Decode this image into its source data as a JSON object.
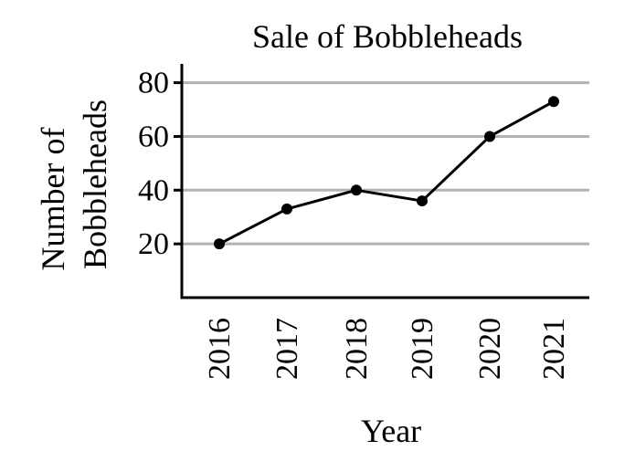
{
  "chart_data": {
    "type": "line",
    "title": "Sale of Bobbleheads",
    "xlabel": "Year",
    "ylabel_lines": [
      "Number of",
      "Bobbleheads"
    ],
    "categories": [
      "2016",
      "2017",
      "2018",
      "2019",
      "2020",
      "2021"
    ],
    "values": [
      20,
      33,
      40,
      36,
      60,
      73
    ],
    "y_ticks": [
      20,
      40,
      60,
      80
    ],
    "ylim": [
      0,
      87
    ],
    "grid": true,
    "colors": {
      "line": "#000000",
      "grid": "#b3b3b3"
    }
  }
}
